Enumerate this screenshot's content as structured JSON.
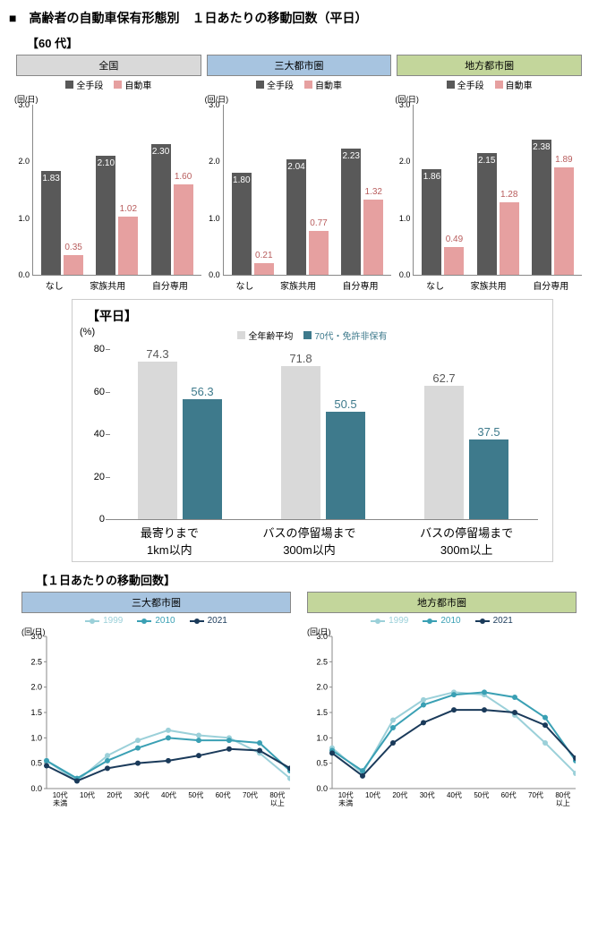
{
  "main_title": "■　高齢者の自動車保有形態別　１日あたりの移動回数（平日）",
  "section1": {
    "age_label": "【60 代】",
    "y_unit": "(回/日)",
    "ylim": [
      0,
      3.0
    ],
    "yticks": [
      0,
      1.0,
      2.0,
      3.0
    ],
    "categories": [
      "なし",
      "家族共用",
      "自分専用"
    ],
    "series_labels": [
      "全手段",
      "自動車"
    ],
    "series_colors": [
      "#595959",
      "#e6a0a0"
    ],
    "panels": [
      {
        "title": "全国",
        "header_bg": "#d9d9d9",
        "data": [
          [
            1.83,
            0.35
          ],
          [
            2.1,
            1.02
          ],
          [
            2.3,
            1.6
          ]
        ]
      },
      {
        "title": "三大都市圏",
        "header_bg": "#a7c4e0",
        "data": [
          [
            1.8,
            0.21
          ],
          [
            2.04,
            0.77
          ],
          [
            2.23,
            1.32
          ]
        ]
      },
      {
        "title": "地方都市圏",
        "header_bg": "#c3d69b",
        "data": [
          [
            1.86,
            0.49
          ],
          [
            2.15,
            1.28
          ],
          [
            2.38,
            1.89
          ]
        ]
      }
    ]
  },
  "section2": {
    "panel_label": "【平日】",
    "y_unit": "(%)",
    "ylim": [
      0,
      80
    ],
    "yticks": [
      0,
      20,
      40,
      60,
      80
    ],
    "series_labels": [
      "全年齢平均",
      "70代・免許非保有"
    ],
    "series_colors": [
      "#d9d9d9",
      "#3e7a8c"
    ],
    "val_colors": [
      "#595959",
      "#3e7a8c"
    ],
    "categories": [
      "最寄りまで\n1km以内",
      "バスの停留場まで\n300m以内",
      "バスの停留場まで\n300m以上"
    ],
    "data": [
      [
        74.3,
        56.3
      ],
      [
        71.8,
        50.5
      ],
      [
        62.7,
        37.5
      ]
    ]
  },
  "section3": {
    "title": "【１日あたりの移動回数】",
    "y_unit": "(回/日)",
    "ylim": [
      0,
      3.0
    ],
    "yticks": [
      0,
      0.5,
      1.0,
      1.5,
      2.0,
      2.5,
      3.0
    ],
    "categories": [
      "10代\n未満",
      "10代",
      "20代",
      "30代",
      "40代",
      "50代",
      "60代",
      "70代",
      "80代\n以上"
    ],
    "series_labels": [
      "1999",
      "2010",
      "2021"
    ],
    "series_colors": [
      "#9bd0d9",
      "#3aa0b4",
      "#1a3a5a"
    ],
    "panels": [
      {
        "title": "三大都市圏",
        "header_bg": "#a7c4e0",
        "data": [
          [
            0.55,
            0.15,
            0.65,
            0.95,
            1.15,
            1.05,
            1.0,
            0.7,
            0.2
          ],
          [
            0.55,
            0.2,
            0.55,
            0.8,
            1.0,
            0.95,
            0.95,
            0.9,
            0.35
          ],
          [
            0.45,
            0.15,
            0.4,
            0.5,
            0.55,
            0.65,
            0.78,
            0.75,
            0.4
          ]
        ]
      },
      {
        "title": "地方都市圏",
        "header_bg": "#c3d69b",
        "data": [
          [
            0.8,
            0.3,
            1.35,
            1.75,
            1.9,
            1.85,
            1.45,
            0.9,
            0.3
          ],
          [
            0.75,
            0.35,
            1.2,
            1.65,
            1.85,
            1.9,
            1.8,
            1.4,
            0.55
          ],
          [
            0.7,
            0.25,
            0.9,
            1.3,
            1.55,
            1.55,
            1.5,
            1.25,
            0.6
          ]
        ]
      }
    ]
  }
}
